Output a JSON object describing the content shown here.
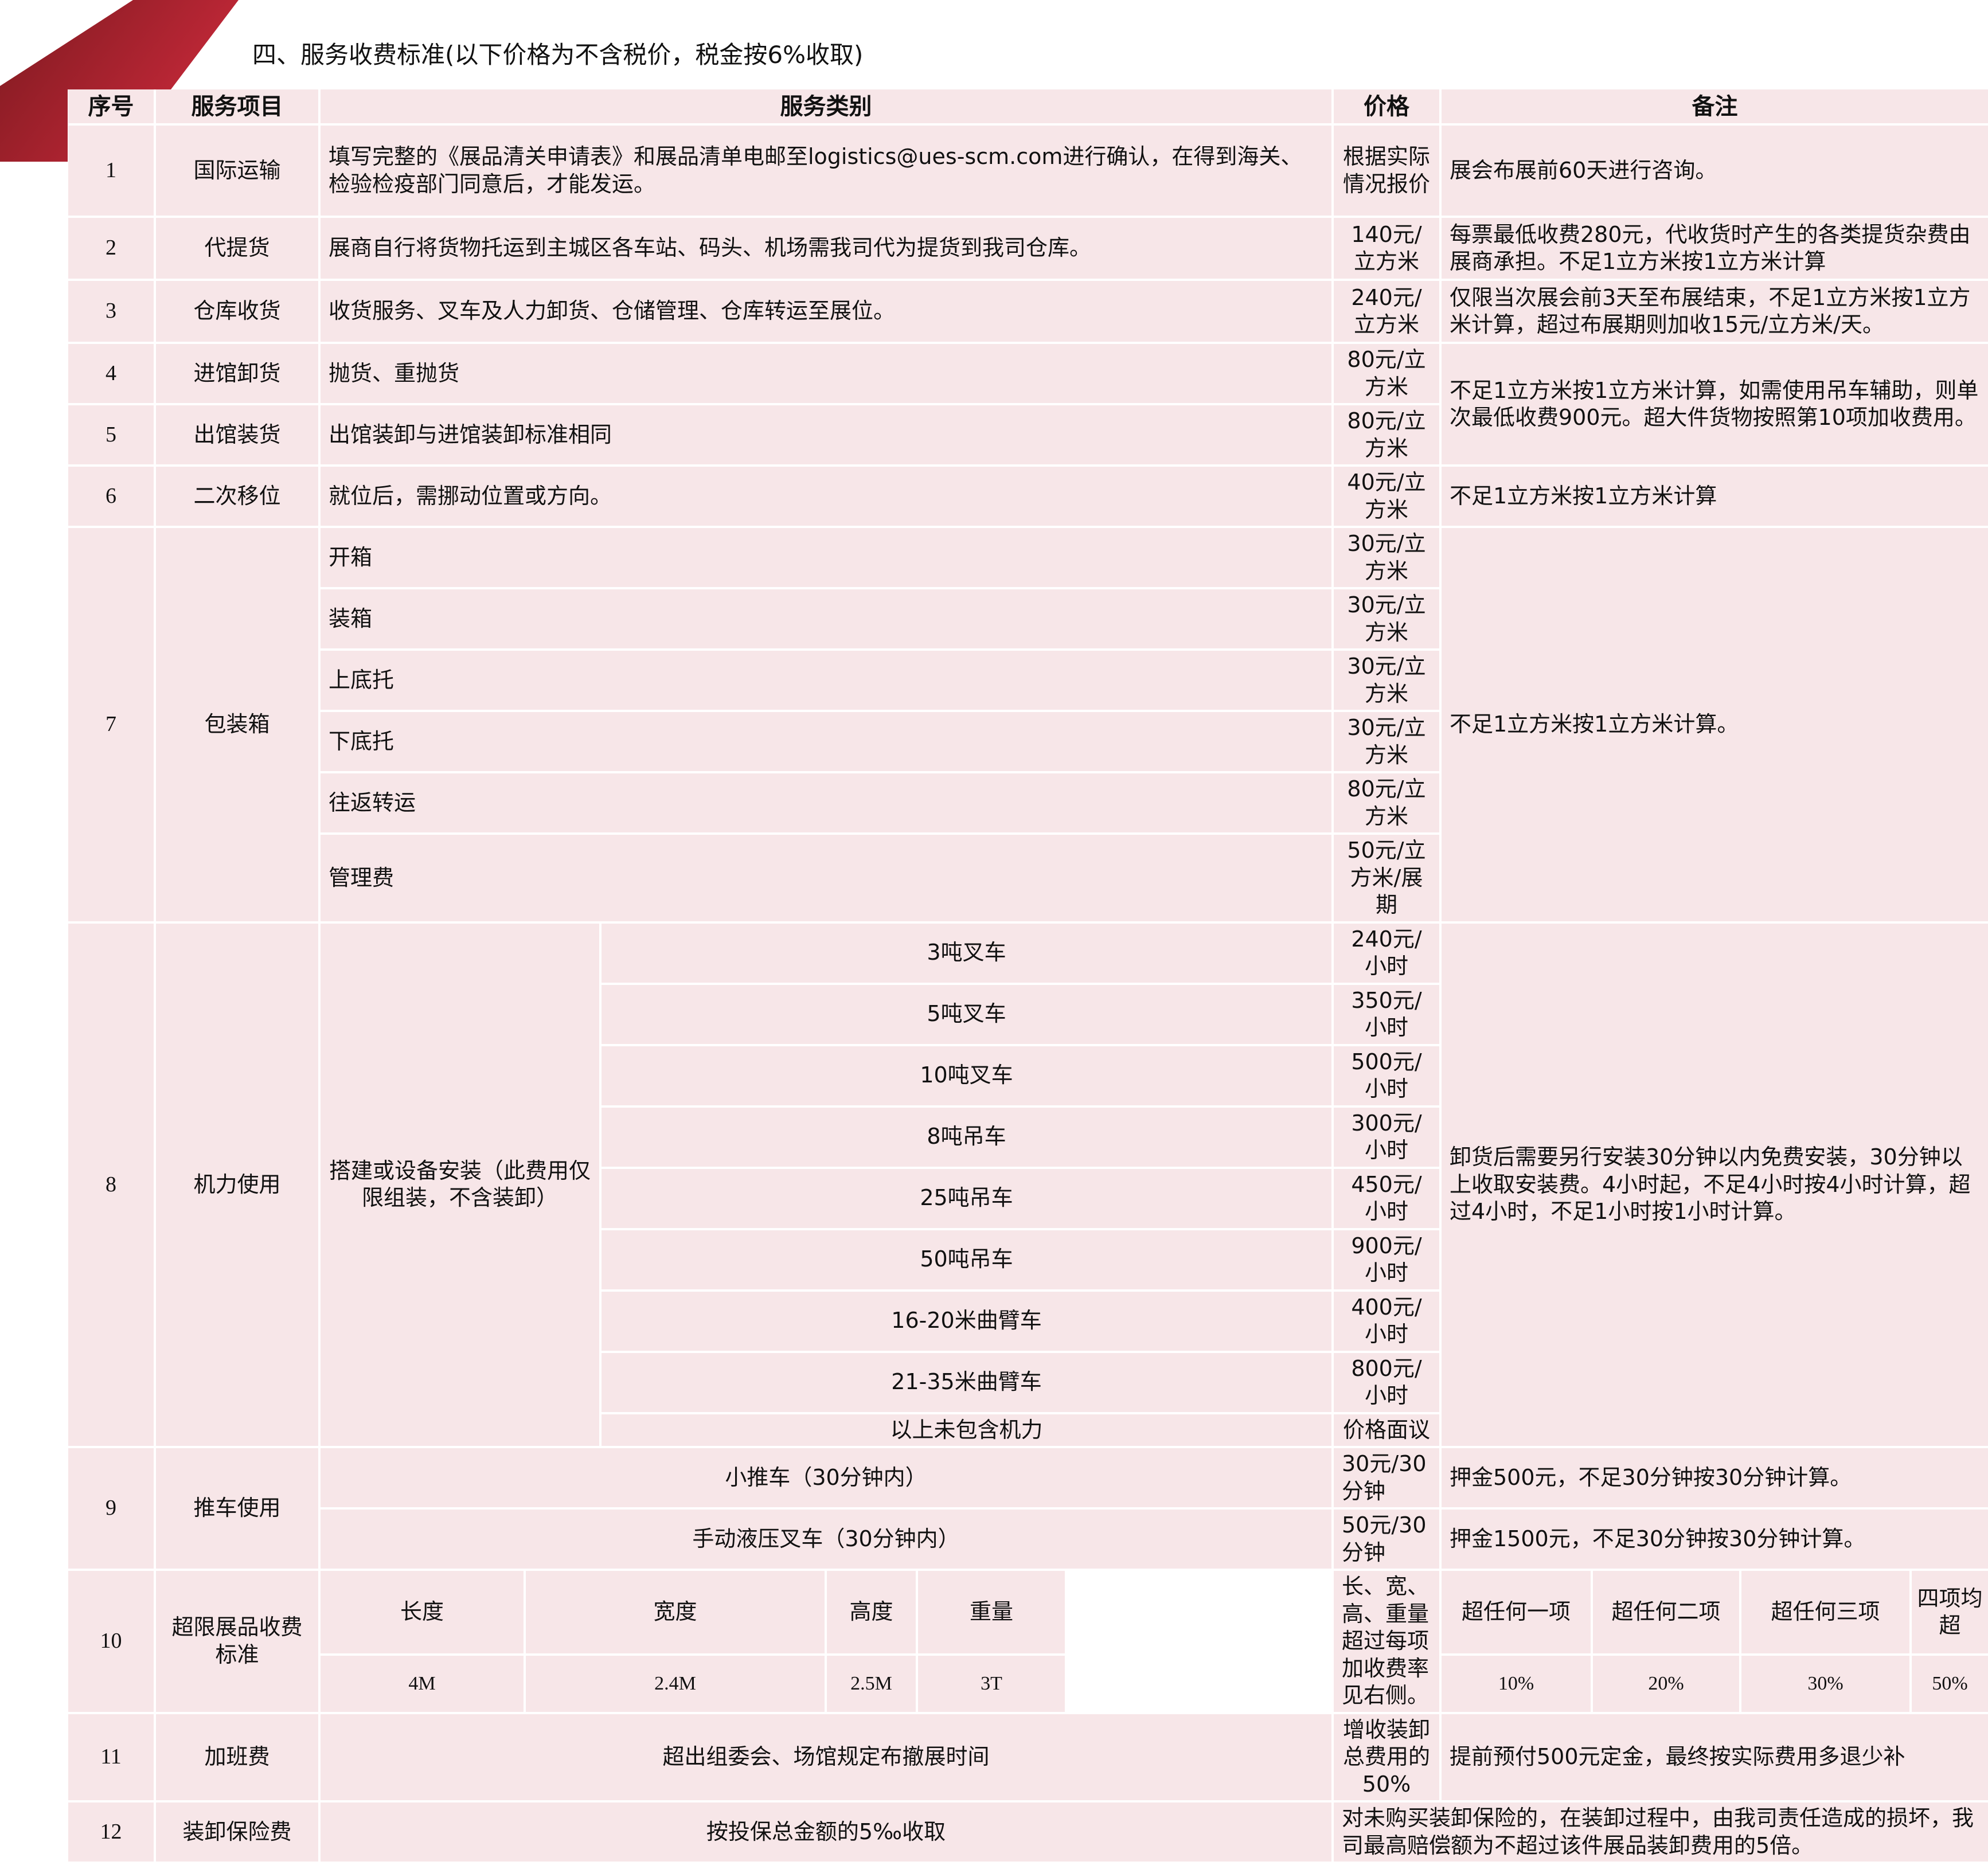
{
  "colors": {
    "accent": "#c1272d",
    "cell": "#f7e6e8"
  },
  "title": "四、服务收费标准(以下价格为不含税价，税金按6%收取)",
  "headers": {
    "no": "序号",
    "item": "服务项目",
    "category": "服务类别",
    "price": "价格",
    "note": "备注"
  },
  "rows": [
    {
      "no": "1",
      "item": "国际运输",
      "category": "填写完整的《展品清关申请表》和展品清单电邮至logistics@ues-scm.com进行确认，在得到海关、检验检疫部门同意后，才能发运。",
      "price": "根据实际情况报价",
      "note": "展会布展前60天进行咨询。"
    },
    {
      "no": "2",
      "item": "代提货",
      "category": "展商自行将货物托运到主城区各车站、码头、机场需我司代为提货到我司仓库。",
      "price": "140元/立方米",
      "note": "每票最低收费280元，代收货时产生的各类提货杂费由展商承担。不足1立方米按1立方米计算"
    },
    {
      "no": "3",
      "item": "仓库收货",
      "category": "收货服务、叉车及人力卸货、仓储管理、仓库转运至展位。",
      "price": "240元/立方米",
      "note": "仅限当次展会前3天至布展结束，不足1立方米按1立方米计算，超过布展期则加收15元/立方米/天。"
    },
    {
      "no": "4",
      "item": "进馆卸货",
      "category": "抛货、重抛货",
      "price": "80元/立方米",
      "note": "不足1立方米按1立方米计算，如需使用吊车辅助，则单次最低收费900元。超大件货物按照第10项加收费用。"
    },
    {
      "no": "5",
      "item": "出馆装货",
      "category": "出馆装卸与进馆装卸标准相同",
      "price": "80元/立方米"
    },
    {
      "no": "6",
      "item": "二次移位",
      "category": "就位后，需挪动位置或方向。",
      "price": "40元/立方米",
      "note": "不足1立方米按1立方米计算"
    },
    {
      "no": "7",
      "item": "包装箱",
      "note": "不足1立方米按1立方米计算。",
      "sub": [
        {
          "category": "开箱",
          "price": "30元/立方米"
        },
        {
          "category": "装箱",
          "price": "30元/立方米"
        },
        {
          "category": "上底托",
          "price": "30元/立方米"
        },
        {
          "category": "下底托",
          "price": "30元/立方米"
        },
        {
          "category": "往返转运",
          "price": "80元/立方米"
        },
        {
          "category": "管理费",
          "price": "50元/立方米/展期"
        }
      ]
    },
    {
      "no": "8",
      "item": "机力使用",
      "category": "搭建或设备安装（此费用仅限组装，不含装卸）",
      "note": "卸货后需要另行安装30分钟以内免费安装，30分钟以上收取安装费。4小时起，不足4小时按4小时计算，超过4小时，不足1小时按1小时计算。",
      "sub": [
        {
          "type": "3吨叉车",
          "price": "240元/小时"
        },
        {
          "type": "5吨叉车",
          "price": "350元/小时"
        },
        {
          "type": "10吨叉车",
          "price": "500元/小时"
        },
        {
          "type": "8吨吊车",
          "price": "300元/小时"
        },
        {
          "type": "25吨吊车",
          "price": "450元/小时"
        },
        {
          "type": "50吨吊车",
          "price": "900元/小时"
        },
        {
          "type": "16-20米曲臂车",
          "price": "400元/小时"
        },
        {
          "type": "21-35米曲臂车",
          "price": "800元/小时"
        },
        {
          "type": "以上未包含机力",
          "price": "价格面议"
        }
      ]
    },
    {
      "no": "9",
      "item": "推车使用",
      "sub": [
        {
          "category": "小推车（30分钟内）",
          "price": "30元/30分钟",
          "note": "押金500元，不足30分钟按30分钟计算。"
        },
        {
          "category": "手动液压叉车（30分钟内）",
          "price": "50元/30分钟",
          "note": "押金1500元，不足30分钟按30分钟计算。"
        }
      ]
    },
    {
      "no": "10",
      "item": "超限展品收费标准",
      "price": "长、宽、高、重量超过每项加收费率见右侧。",
      "dims": [
        {
          "label": "长度",
          "value": "4M"
        },
        {
          "label": "宽度",
          "value": "2.4M"
        },
        {
          "label": "高度",
          "value": "2.5M"
        },
        {
          "label": "重量",
          "value": "3T"
        }
      ],
      "rates": [
        {
          "label": "超任何一项",
          "value": "10%"
        },
        {
          "label": "超任何二项",
          "value": "20%"
        },
        {
          "label": "超任何三项",
          "value": "30%"
        },
        {
          "label": "四项均超",
          "value": "50%"
        }
      ]
    },
    {
      "no": "11",
      "item": "加班费",
      "category": "超出组委会、场馆规定布撤展时间",
      "price": "增收装卸总费用的50%",
      "note": "提前预付500元定金，最终按实际费用多退少补"
    },
    {
      "no": "12",
      "item": "装卸保险费",
      "category": "按投保总金额的5‰收取",
      "note": "对未购买装卸保险的，在装卸过程中，由我司责任造成的损坏，我司最高赔偿额为不超过该件展品装卸费用的5倍。"
    }
  ]
}
